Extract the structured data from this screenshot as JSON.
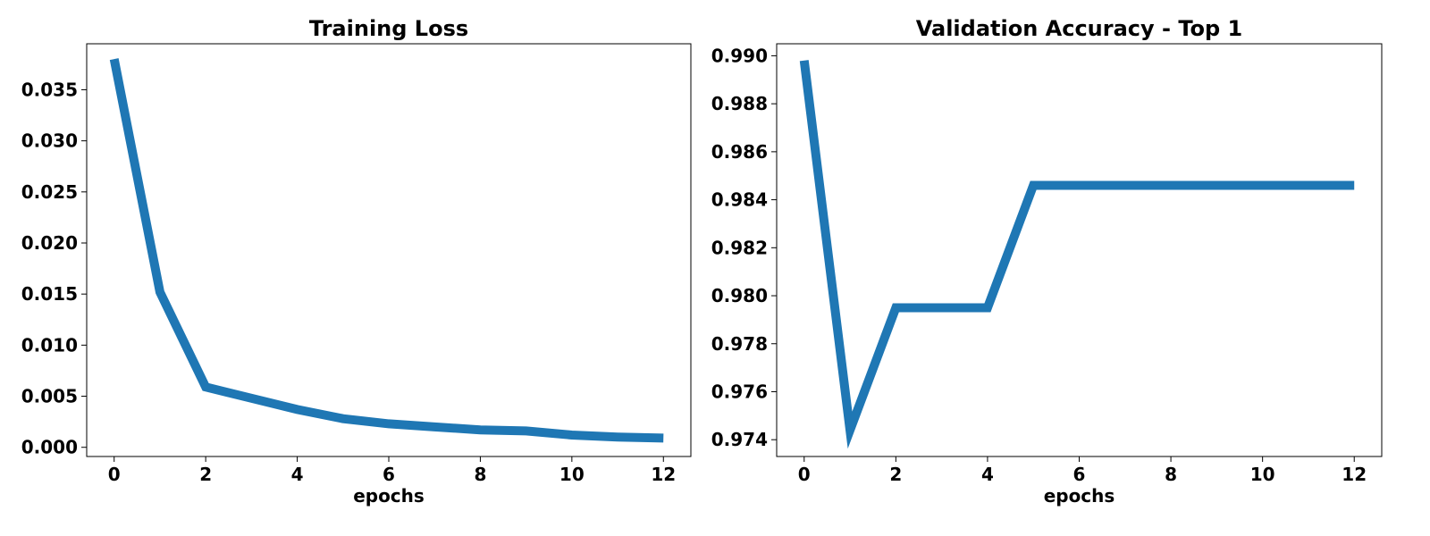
{
  "chart_data": [
    {
      "type": "line",
      "title": "Training Loss",
      "xlabel": "epochs",
      "ylabel": "",
      "xlim": [
        -0.6,
        12.6
      ],
      "ylim": [
        -0.0009,
        0.0395
      ],
      "xticks": [
        0,
        2,
        4,
        6,
        8,
        10,
        12
      ],
      "xtick_labels": [
        "0",
        "2",
        "4",
        "6",
        "8",
        "10",
        "12"
      ],
      "yticks": [
        0.0,
        0.005,
        0.01,
        0.015,
        0.02,
        0.025,
        0.03,
        0.035
      ],
      "ytick_labels": [
        "0.000",
        "0.005",
        "0.010",
        "0.015",
        "0.020",
        "0.025",
        "0.030",
        "0.035"
      ],
      "grid": false,
      "series": [
        {
          "color": "#1f77b4",
          "x": [
            0,
            1,
            2,
            3,
            4,
            5,
            6,
            7,
            8,
            9,
            10,
            11,
            12
          ],
          "values": [
            0.038,
            0.0152,
            0.0059,
            0.0048,
            0.0037,
            0.0028,
            0.0023,
            0.002,
            0.0017,
            0.0016,
            0.0012,
            0.001,
            0.0009
          ]
        }
      ]
    },
    {
      "type": "line",
      "title": "Validation Accuracy - Top 1",
      "xlabel": "epochs",
      "ylabel": "",
      "xlim": [
        -0.6,
        12.6
      ],
      "ylim": [
        0.9733,
        0.9905
      ],
      "xticks": [
        0,
        2,
        4,
        6,
        8,
        10,
        12
      ],
      "xtick_labels": [
        "0",
        "2",
        "4",
        "6",
        "8",
        "10",
        "12"
      ],
      "yticks": [
        0.974,
        0.976,
        0.978,
        0.98,
        0.982,
        0.984,
        0.986,
        0.988,
        0.99
      ],
      "ytick_labels": [
        "0.974",
        "0.976",
        "0.978",
        "0.980",
        "0.982",
        "0.984",
        "0.986",
        "0.988",
        "0.990"
      ],
      "grid": false,
      "series": [
        {
          "color": "#1f77b4",
          "x": [
            0,
            1,
            2,
            3,
            4,
            5,
            6,
            7,
            8,
            9,
            10,
            11,
            12
          ],
          "values": [
            0.9898,
            0.9744,
            0.9795,
            0.9795,
            0.9795,
            0.9846,
            0.9846,
            0.9846,
            0.9846,
            0.9846,
            0.9846,
            0.9846,
            0.9846
          ]
        }
      ]
    }
  ]
}
